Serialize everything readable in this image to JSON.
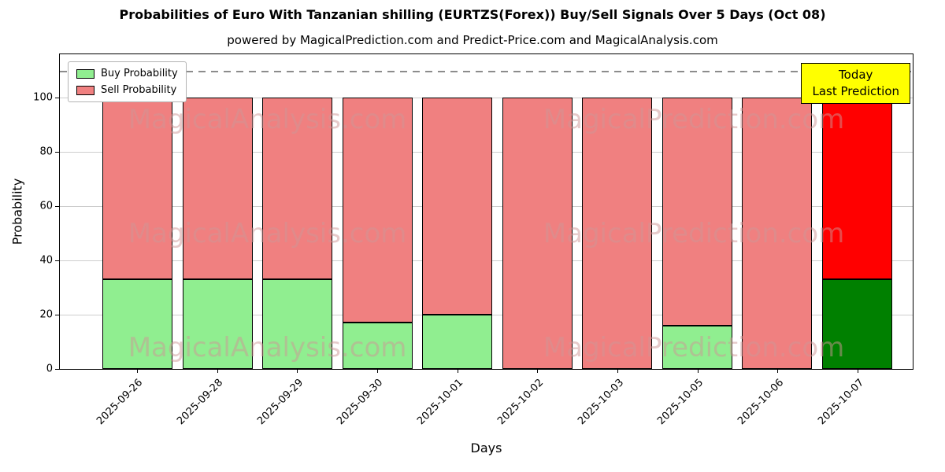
{
  "figure": {
    "title": "Probabilities of Euro With Tanzanian shilling (EURTZS(Forex)) Buy/Sell Signals Over 5 Days (Oct 08)",
    "subtitle": "powered by MagicalPrediction.com and Predict-Price.com and MagicalAnalysis.com"
  },
  "axes": {
    "xlabel": "Days",
    "ylabel": "Probability"
  },
  "legend": {
    "buy_label": "Buy Probability",
    "sell_label": "Sell Probability"
  },
  "annotation": {
    "line1": "Today",
    "line2": "Last Prediction"
  },
  "watermarks": {
    "left": "MagicalAnalysis.com",
    "right": "MagicalPrediction.com"
  },
  "colors": {
    "buy": "#90ee90",
    "sell": "#f08080",
    "buy_today": "#008000",
    "sell_today": "#ff0000",
    "annotation_bg": "#ffff00"
  },
  "chart_data": {
    "type": "bar",
    "stacked": true,
    "title": "Probabilities of Euro With Tanzanian shilling (EURTZS(Forex)) Buy/Sell Signals Over 5 Days (Oct 08)",
    "xlabel": "Days",
    "ylabel": "Probability",
    "categories": [
      "2025-09-26",
      "2025-09-28",
      "2025-09-29",
      "2025-09-30",
      "2025-10-01",
      "2025-10-02",
      "2025-10-03",
      "2025-10-05",
      "2025-10-06",
      "2025-10-07"
    ],
    "series": [
      {
        "name": "Buy Probability",
        "values": [
          33,
          33,
          33,
          17,
          20,
          0,
          0,
          16,
          0,
          33
        ]
      },
      {
        "name": "Sell Probability",
        "values": [
          67,
          67,
          67,
          83,
          80,
          100,
          100,
          84,
          100,
          67
        ]
      }
    ],
    "yticks": [
      0,
      20,
      40,
      60,
      80,
      100
    ],
    "ylim": [
      0,
      116
    ],
    "dashed_line_y": 110,
    "grid": true,
    "legend_position": "upper left"
  }
}
